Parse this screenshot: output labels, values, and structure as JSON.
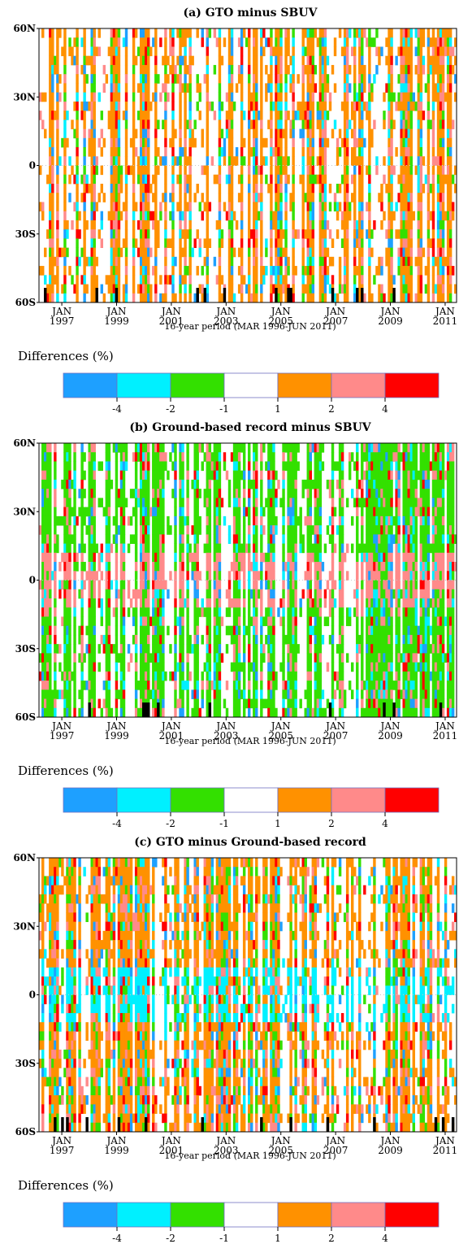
{
  "chart_data": [
    {
      "type": "heatmap",
      "title": "(a) GTO minus SBUV",
      "xlabel": "16-year period (MAR 1996-JUN 2011)",
      "ylabel": "",
      "y_tick_labels": [
        "60N",
        "30N",
        "0",
        "30S",
        "60S"
      ],
      "x_tick_labels": [
        [
          "JAN",
          "1997"
        ],
        [
          "JAN",
          "1999"
        ],
        [
          "JAN",
          "2001"
        ],
        [
          "JAN",
          "2003"
        ],
        [
          "JAN",
          "2005"
        ],
        [
          "JAN",
          "2007"
        ],
        [
          "JAN",
          "2009"
        ],
        [
          "JAN",
          "2011"
        ]
      ],
      "x_range": [
        "1996-03",
        "2011-06"
      ],
      "y_range": [
        -60,
        60
      ],
      "legend_title": "Differences (%)",
      "dominant_category": 4,
      "sparsity": 0.58,
      "equator_band_category": 4,
      "seed": 11
    },
    {
      "type": "heatmap",
      "title": "(b) Ground-based record minus SBUV",
      "xlabel": "16-year period (MAR 1996-JUN 2011)",
      "ylabel": "",
      "y_tick_labels": [
        "60N",
        "30N",
        "0",
        "30S",
        "60S"
      ],
      "x_tick_labels": [
        [
          "JAN",
          "1997"
        ],
        [
          "JAN",
          "1999"
        ],
        [
          "JAN",
          "2001"
        ],
        [
          "JAN",
          "2003"
        ],
        [
          "JAN",
          "2005"
        ],
        [
          "JAN",
          "2007"
        ],
        [
          "JAN",
          "2009"
        ],
        [
          "JAN",
          "2011"
        ]
      ],
      "x_range": [
        "1996-03",
        "2011-06"
      ],
      "y_range": [
        -60,
        60
      ],
      "legend_title": "Differences (%)",
      "dominant_category": 2,
      "sparsity": 0.5,
      "equator_band_category": 5,
      "seed": 29
    },
    {
      "type": "heatmap",
      "title": "(c) GTO minus Ground-based record",
      "xlabel": "16-year period (MAR 1996-JUN 2011)",
      "ylabel": "",
      "y_tick_labels": [
        "60N",
        "30N",
        "0",
        "30S",
        "60S"
      ],
      "x_tick_labels": [
        [
          "JAN",
          "1997"
        ],
        [
          "JAN",
          "1999"
        ],
        [
          "JAN",
          "2001"
        ],
        [
          "JAN",
          "2003"
        ],
        [
          "JAN",
          "2005"
        ],
        [
          "JAN",
          "2007"
        ],
        [
          "JAN",
          "2009"
        ],
        [
          "JAN",
          "2011"
        ]
      ],
      "x_range": [
        "1996-03",
        "2011-06"
      ],
      "y_range": [
        -60,
        60
      ],
      "legend_title": "Differences (%)",
      "dominant_category": 4,
      "sparsity": 0.45,
      "equator_band_category": 1,
      "seed": 47
    }
  ],
  "legend": {
    "colors": [
      "#1ea0ff",
      "#00f0ff",
      "#33e000",
      "#ffffff",
      "#ff9100",
      "#ff8a8a",
      "#ff0000"
    ],
    "tick_labels": [
      "-4",
      "-2",
      "-1",
      "1",
      "2",
      "4"
    ],
    "outlier_color": "#000000"
  }
}
